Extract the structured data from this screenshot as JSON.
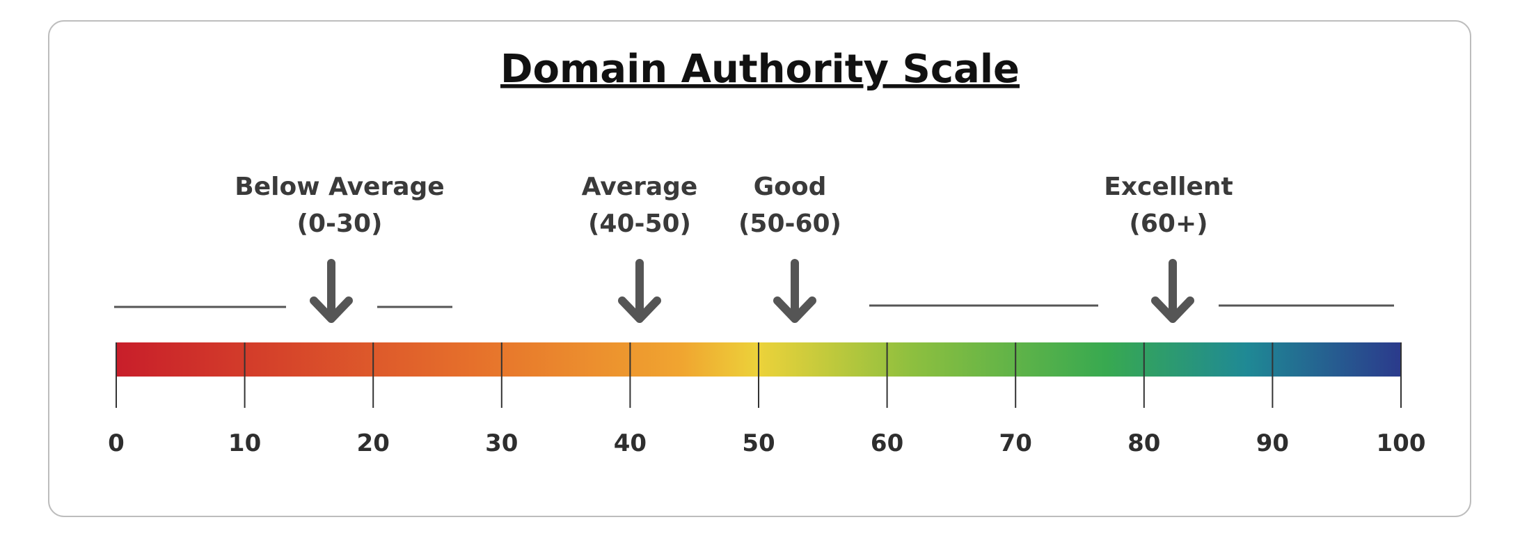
{
  "title": "Domain Authority Scale",
  "ranges": [
    {
      "name": "Below Average",
      "range": "(0-30)"
    },
    {
      "name": "Average",
      "range": "(40-50)"
    },
    {
      "name": "Good",
      "range": "(50-60)"
    },
    {
      "name": "Excellent",
      "range": "(60+)"
    }
  ],
  "scale": {
    "ticks": [
      0,
      10,
      20,
      30,
      40,
      50,
      60,
      70,
      80,
      90,
      100
    ]
  }
}
